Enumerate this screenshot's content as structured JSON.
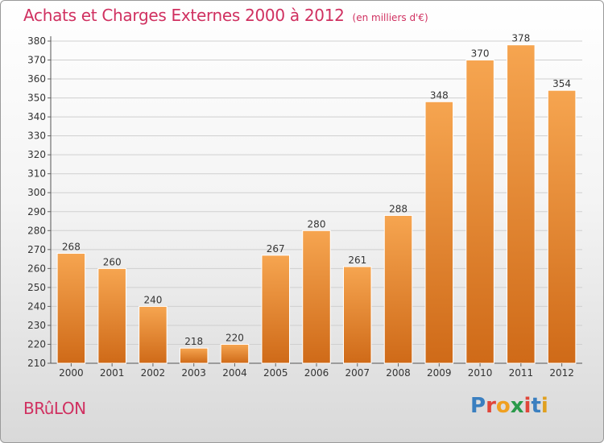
{
  "page": {
    "title": "Achats et Charges Externes 2000 à 2012",
    "subtitle": "(en milliers d'€)",
    "city": "BRûLON",
    "logo": {
      "text": "Proxiti",
      "colors": [
        "#3a7fc0",
        "#e0463a",
        "#f0a020",
        "#2a9a4a",
        "#e0463a",
        "#3a7fc0",
        "#e0a020"
      ]
    }
  },
  "colors": {
    "bar_top": "#f6a550",
    "bar_bottom": "#cf6a18",
    "title": "#d03060",
    "grid": "#cfcfcf"
  },
  "chart_data": {
    "type": "bar",
    "title": "Achats et Charges Externes 2000 à 2012",
    "subtitle": "(en milliers d'€)",
    "categories": [
      "2000",
      "2001",
      "2002",
      "2003",
      "2004",
      "2005",
      "2006",
      "2007",
      "2008",
      "2009",
      "2010",
      "2011",
      "2012"
    ],
    "values": [
      268,
      260,
      240,
      218,
      220,
      267,
      280,
      261,
      288,
      348,
      370,
      378,
      354
    ],
    "ylim": [
      210,
      380
    ],
    "yticks": [
      210,
      220,
      230,
      240,
      250,
      260,
      270,
      280,
      290,
      300,
      310,
      320,
      330,
      340,
      350,
      360,
      370,
      380
    ],
    "grid": true,
    "legend": "none",
    "xlabel": "",
    "ylabel": ""
  }
}
